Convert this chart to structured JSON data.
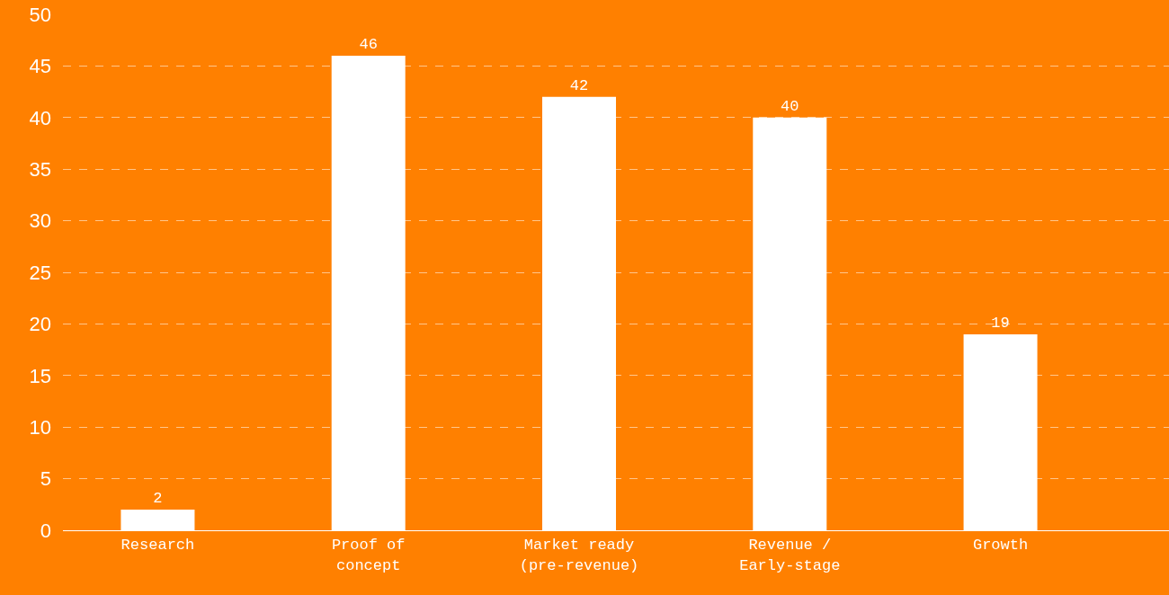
{
  "chart_data": {
    "type": "bar",
    "categories": [
      "Research",
      "Proof of concept",
      "Market ready (pre-revenue)",
      "Revenue / Early-stage",
      "Growth"
    ],
    "values": [
      2,
      46,
      42,
      40,
      19
    ],
    "color": "#ffffff",
    "data_labels": true,
    "ylim": [
      0,
      50
    ],
    "yticks": [
      0,
      5,
      10,
      15,
      20,
      25,
      30,
      35,
      40,
      45,
      50
    ],
    "grid": "y"
  }
}
